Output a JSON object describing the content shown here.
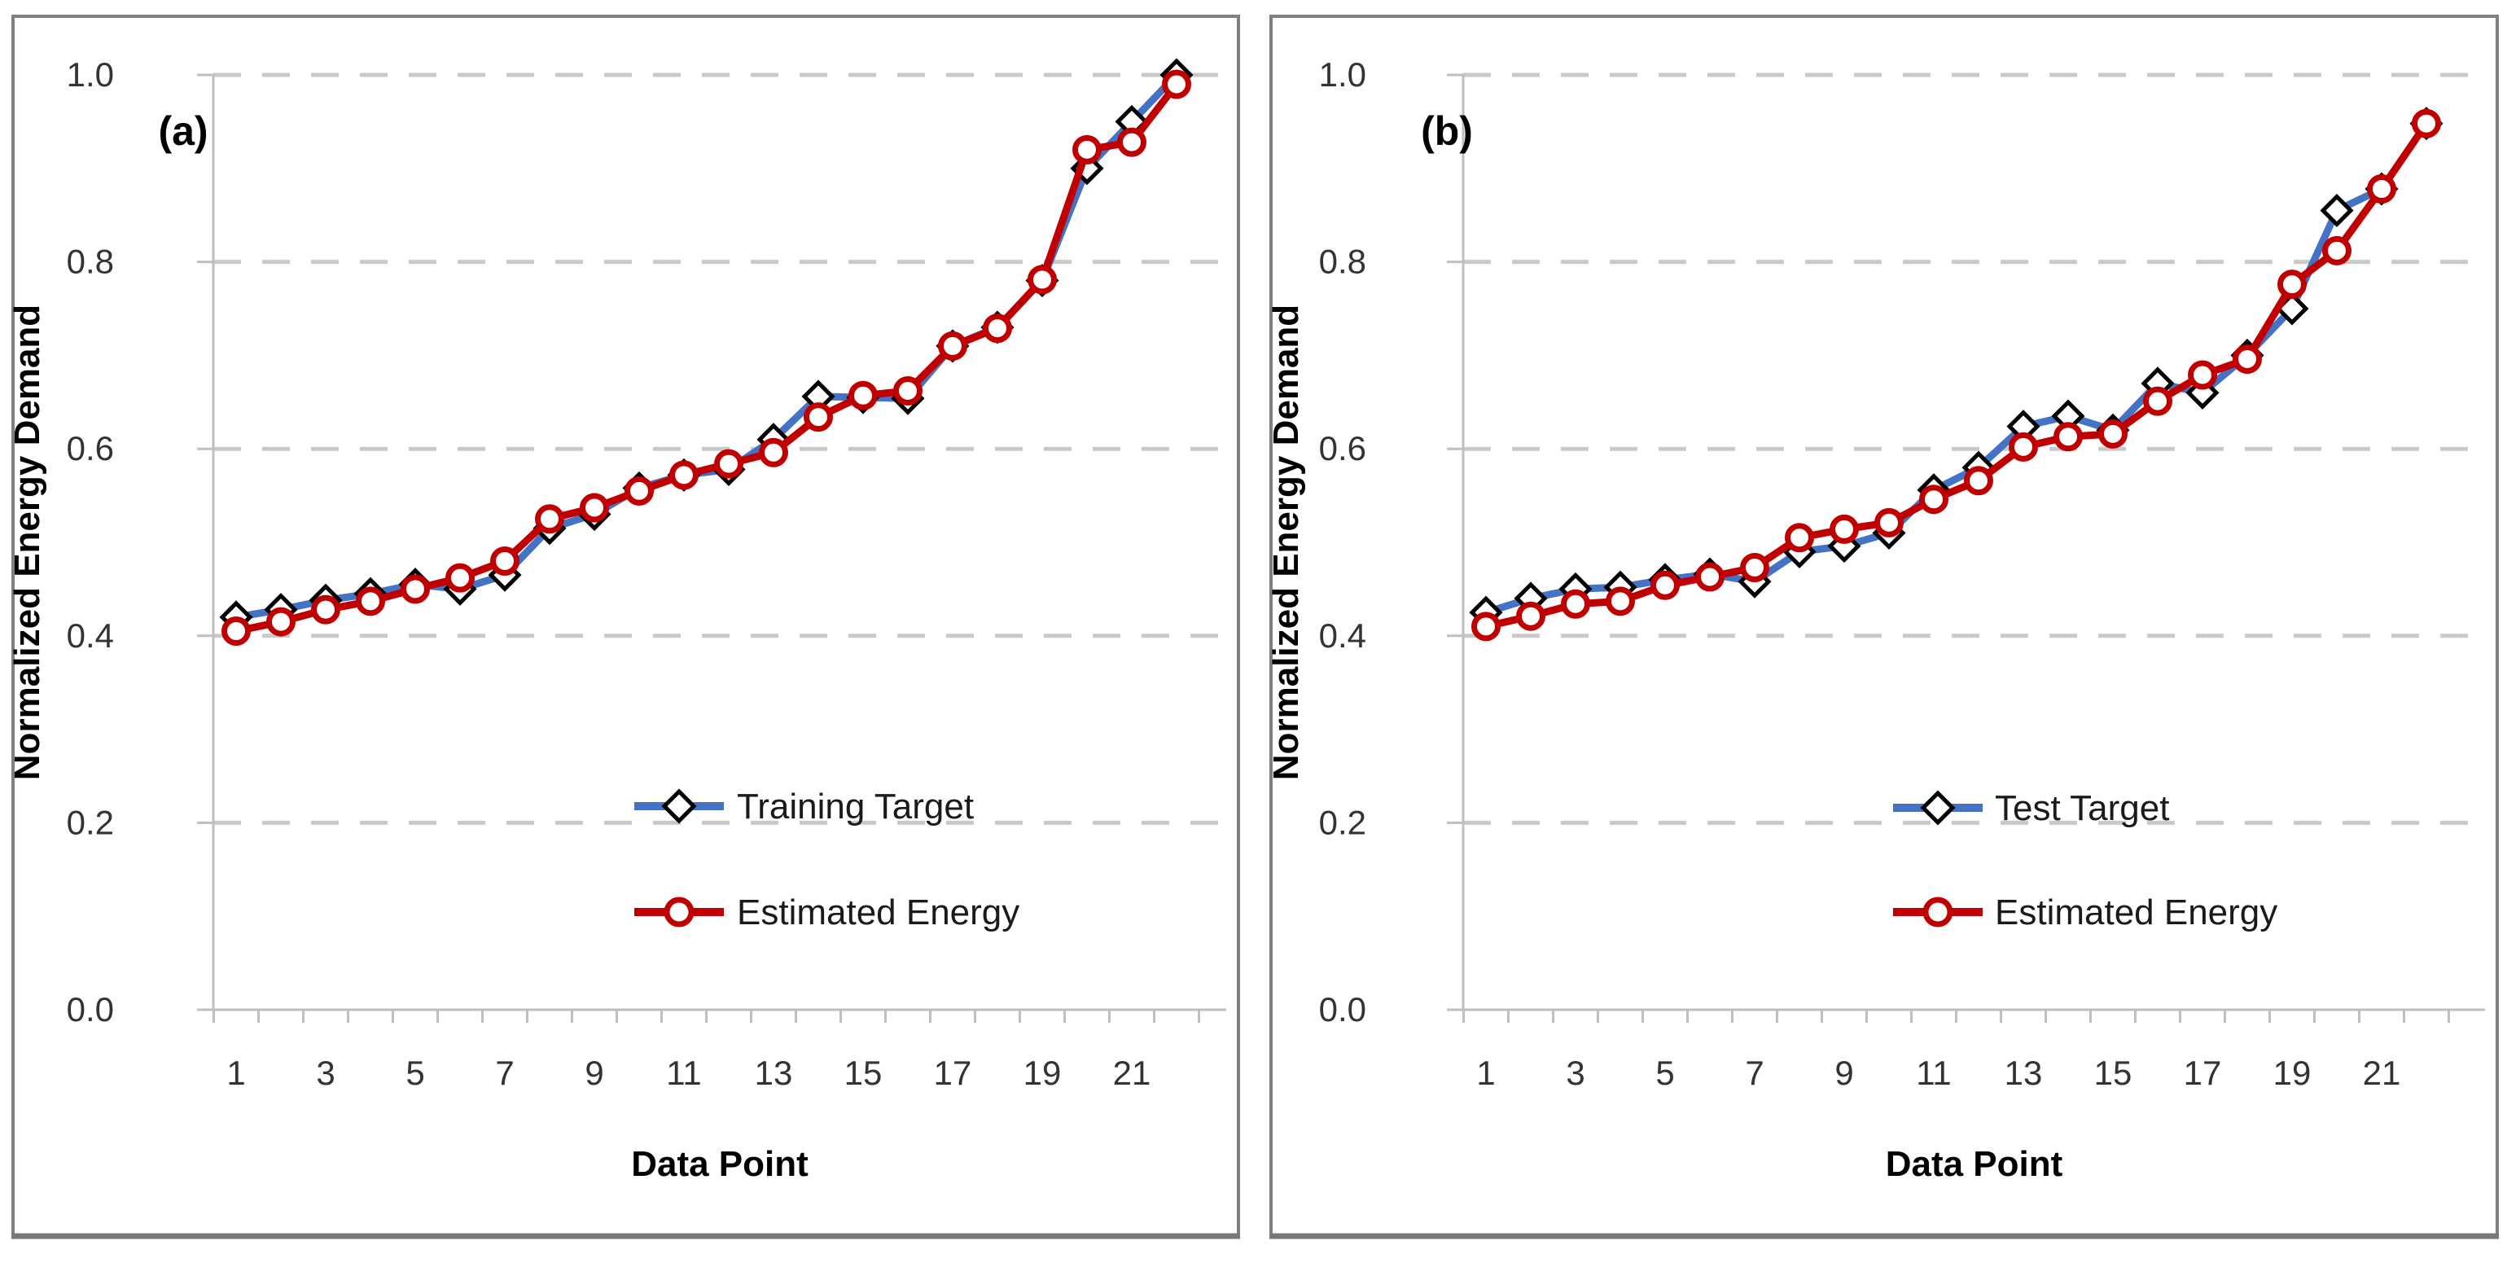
{
  "figure": {
    "kind": "dual-panel-line-chart",
    "panel_count": 2,
    "background": "#ffffff",
    "panel_border_color": "#808080"
  },
  "colors": {
    "target_line": "#4472C4",
    "target_marker": "#000000",
    "estimated_line": "#C00000",
    "gridline": "#C9C9C9",
    "axis_line": "#BFBFBF",
    "tick_text": "#333333",
    "title_text": "#000000"
  },
  "chart_data": [
    {
      "type": "line",
      "panel_label": "(a)",
      "xlabel": "Data Point",
      "ylabel": "Normalized Energy Demand",
      "ylim": [
        0.0,
        1.0
      ],
      "y_tick_labels": [
        "1.0",
        "0.8",
        "0.6",
        "0.4",
        "0.2",
        "0.0"
      ],
      "x_tick_labels": [
        "1",
        "3",
        "5",
        "7",
        "9",
        "11",
        "13",
        "15",
        "17",
        "19",
        "21"
      ],
      "grid": "dashed-horizontal",
      "legend_position": "inside-lower-right",
      "categories": [
        1,
        2,
        3,
        4,
        5,
        6,
        7,
        8,
        9,
        10,
        11,
        12,
        13,
        14,
        15,
        16,
        17,
        18,
        19,
        20,
        21,
        22
      ],
      "series": [
        {
          "name": "Training Target",
          "marker": "diamond",
          "values": [
            0.42,
            0.428,
            0.438,
            0.445,
            0.455,
            0.45,
            0.465,
            0.515,
            0.53,
            0.558,
            0.572,
            0.578,
            0.61,
            0.656,
            0.655,
            0.654,
            0.71,
            0.73,
            0.78,
            0.9,
            0.95,
            1.0
          ]
        },
        {
          "name": "Estimated Energy",
          "marker": "circle",
          "values": [
            0.405,
            0.415,
            0.428,
            0.437,
            0.45,
            0.462,
            0.48,
            0.525,
            0.537,
            0.555,
            0.572,
            0.584,
            0.596,
            0.634,
            0.657,
            0.662,
            0.71,
            0.729,
            0.781,
            0.92,
            0.928,
            0.99
          ]
        }
      ]
    },
    {
      "type": "line",
      "panel_label": "(b)",
      "xlabel": "Data Point",
      "ylabel": "Normalized Energy Demand",
      "ylim": [
        0.0,
        1.0
      ],
      "y_tick_labels": [
        "1.0",
        "0.8",
        "0.6",
        "0.4",
        "0.2",
        "0.0"
      ],
      "x_tick_labels": [
        "1",
        "3",
        "5",
        "7",
        "9",
        "11",
        "13",
        "15",
        "17",
        "19",
        "21"
      ],
      "grid": "dashed-horizontal",
      "legend_position": "inside-lower-right",
      "categories": [
        1,
        2,
        3,
        4,
        5,
        6,
        7,
        8,
        9,
        10,
        11,
        12,
        13,
        14,
        15,
        16,
        17,
        18,
        19,
        20,
        21,
        22
      ],
      "series": [
        {
          "name": "Test Target",
          "marker": "diamond",
          "values": [
            0.425,
            0.44,
            0.45,
            0.452,
            0.46,
            0.466,
            0.458,
            0.49,
            0.496,
            0.51,
            0.556,
            0.58,
            0.624,
            0.635,
            0.62,
            0.67,
            0.66,
            0.7,
            0.75,
            0.855,
            0.878,
            0.948
          ]
        },
        {
          "name": "Estimated Energy",
          "marker": "circle",
          "values": [
            0.41,
            0.421,
            0.434,
            0.437,
            0.454,
            0.463,
            0.473,
            0.505,
            0.514,
            0.521,
            0.546,
            0.566,
            0.602,
            0.613,
            0.616,
            0.651,
            0.679,
            0.696,
            0.776,
            0.812,
            0.878,
            0.948
          ]
        }
      ]
    }
  ]
}
